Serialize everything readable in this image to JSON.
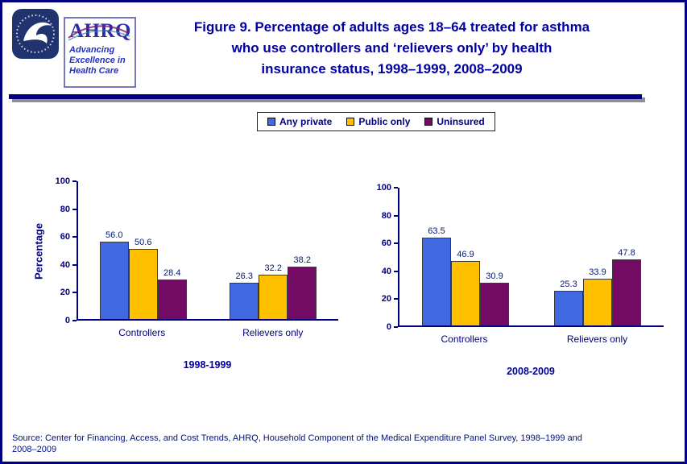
{
  "header": {
    "title_lines": [
      "Figure 9. Percentage of adults ages 18–64 treated for asthma",
      "who use controllers and ‘relievers only’ by health",
      "insurance status, 1998–1999, 2008–2009"
    ],
    "ahrq_logo": {
      "wordmark": "AHRQ",
      "tagline_lines": [
        "Advancing",
        "Excellence in",
        "Health Care"
      ]
    }
  },
  "legend": [
    {
      "label": "Any private",
      "color": "#4169E1"
    },
    {
      "label": "Public only",
      "color": "#FFC000"
    },
    {
      "label": "Uninsured",
      "color": "#730A63"
    }
  ],
  "chart_data": [
    {
      "type": "bar",
      "period_label": "1998-1999",
      "categories": [
        "Controllers",
        "Relievers only"
      ],
      "series": [
        {
          "name": "Any private",
          "values": [
            56.0,
            26.3
          ]
        },
        {
          "name": "Public only",
          "values": [
            50.6,
            32.2
          ]
        },
        {
          "name": "Uninsured",
          "values": [
            28.4,
            38.2
          ]
        }
      ],
      "ylabel": "Percentage",
      "xlabel": "",
      "ylim": [
        0,
        100
      ],
      "yticks": [
        0,
        20,
        40,
        60,
        80,
        100
      ],
      "grid": false,
      "legend_position": "top-center"
    },
    {
      "type": "bar",
      "period_label": "2008-2009",
      "categories": [
        "Controllers",
        "Relievers only"
      ],
      "series": [
        {
          "name": "Any private",
          "values": [
            63.5,
            25.3
          ]
        },
        {
          "name": "Public only",
          "values": [
            46.9,
            33.9
          ]
        },
        {
          "name": "Uninsured",
          "values": [
            30.9,
            47.8
          ]
        }
      ],
      "ylabel": "",
      "xlabel": "",
      "ylim": [
        0,
        100
      ],
      "yticks": [
        0,
        20,
        40,
        60,
        80,
        100
      ],
      "grid": false,
      "legend_position": "top-center"
    }
  ],
  "footer": {
    "source_lines": [
      "Source: Center for Financing, Access, and Cost Trends, AHRQ, Household Component of the Medical Expenditure Panel Survey, 1998–1999 and",
      "2008–2009"
    ]
  }
}
